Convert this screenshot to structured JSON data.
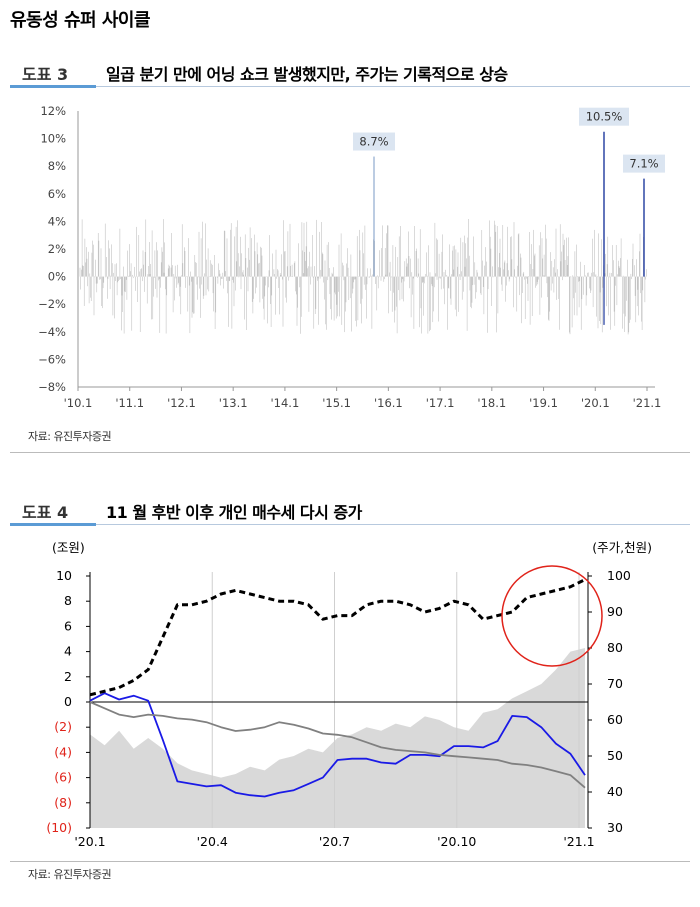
{
  "section_title": "유동성 슈퍼 사이클",
  "figure3": {
    "label": "도표 3",
    "title": "일곱 분기 만에 어닝 쇼크 발생했지만, 주가는 기록적으로 상승",
    "source": "자료: 유진투자증권"
  },
  "figure4": {
    "label": "도표 4",
    "title": "11 월 후반 이후 개인 매수세 다시 증가",
    "source": "자료: 유진투자증권"
  },
  "chart_data": [
    {
      "type": "bar",
      "y_ticks": [
        "12%",
        "10%",
        "8%",
        "6%",
        "4%",
        "2%",
        "0%",
        "−2%",
        "−4%",
        "−6%",
        "−8%"
      ],
      "x_ticks": [
        "'10.1",
        "'11.1",
        "'12.1",
        "'13.1",
        "'14.1",
        "'15.1",
        "'16.1",
        "'17.1",
        "'18.1",
        "'19.1",
        "'20.1",
        "'21.1"
      ],
      "ylim": [
        -8,
        12
      ],
      "unit": "%",
      "grid": false,
      "annotations": [
        {
          "label": "8.7%",
          "x": "'16.1",
          "value": 8.7
        },
        {
          "label": "10.5%",
          "x": "'20.1",
          "value": 10.5
        },
        {
          "label": "7.1%",
          "x": "'21.1",
          "value": 7.1
        }
      ]
    },
    {
      "type": "line",
      "left_axis_label": "(조원)",
      "right_axis_label": "(주가,천원)",
      "left_ticks": [
        "10",
        "8",
        "6",
        "4",
        "2",
        "0",
        "(2)",
        "(4)",
        "(6)",
        "(8)",
        "(10)"
      ],
      "right_ticks": [
        "100",
        "90",
        "80",
        "70",
        "60",
        "50",
        "40",
        "30"
      ],
      "x_ticks": [
        "'20.1",
        "'20.4",
        "'20.7",
        "'20.10",
        "'21.1"
      ],
      "ylim_left": [
        -10,
        10
      ],
      "ylim_right": [
        30,
        100
      ],
      "negative_tick_color": "#e0231a",
      "grid": "vertical",
      "series": [
        {
          "style": "area",
          "color": "#d9d9d9",
          "axis": "right",
          "values": [
            56,
            53,
            57,
            52,
            55,
            52,
            48,
            46,
            45,
            44,
            45,
            47,
            46,
            49,
            50,
            52,
            51,
            55,
            56,
            58,
            57,
            59,
            58,
            61,
            60,
            58,
            57,
            62,
            63,
            66,
            68,
            70,
            74,
            79,
            80
          ]
        },
        {
          "style": "line",
          "color": "#1a1ae6",
          "axis": "left",
          "values": [
            0.1,
            0.7,
            0.2,
            0.5,
            0.1,
            -3.0,
            -6.3,
            -6.5,
            -6.7,
            -6.6,
            -7.2,
            -7.4,
            -7.5,
            -7.2,
            -7.0,
            -6.5,
            -6.0,
            -4.6,
            -4.5,
            -4.5,
            -4.8,
            -4.9,
            -4.2,
            -4.2,
            -4.3,
            -3.5,
            -3.5,
            -3.6,
            -3.1,
            -1.1,
            -1.2,
            -2.0,
            -3.3,
            -4.1,
            -5.8
          ]
        },
        {
          "style": "line",
          "color": "#808080",
          "axis": "left",
          "values": [
            0.0,
            -0.5,
            -1.0,
            -1.2,
            -1.0,
            -1.1,
            -1.3,
            -1.4,
            -1.6,
            -2.0,
            -2.3,
            -2.2,
            -2.0,
            -1.6,
            -1.8,
            -2.1,
            -2.5,
            -2.6,
            -2.8,
            -3.2,
            -3.6,
            -3.8,
            -3.9,
            -4.0,
            -4.2,
            -4.3,
            -4.4,
            -4.5,
            -4.6,
            -4.9,
            -5.0,
            -5.2,
            -5.5,
            -5.8,
            -6.8
          ]
        },
        {
          "style": "dashed",
          "color": "#000000",
          "axis": "right",
          "values": [
            67,
            68,
            69,
            71,
            74,
            83,
            92,
            92,
            93,
            95,
            96,
            95,
            94,
            93,
            93,
            92,
            88,
            89,
            89,
            92,
            93,
            93,
            92,
            90,
            91,
            93,
            92,
            88,
            89,
            90,
            94,
            95,
            96,
            97,
            99
          ]
        }
      ]
    }
  ]
}
